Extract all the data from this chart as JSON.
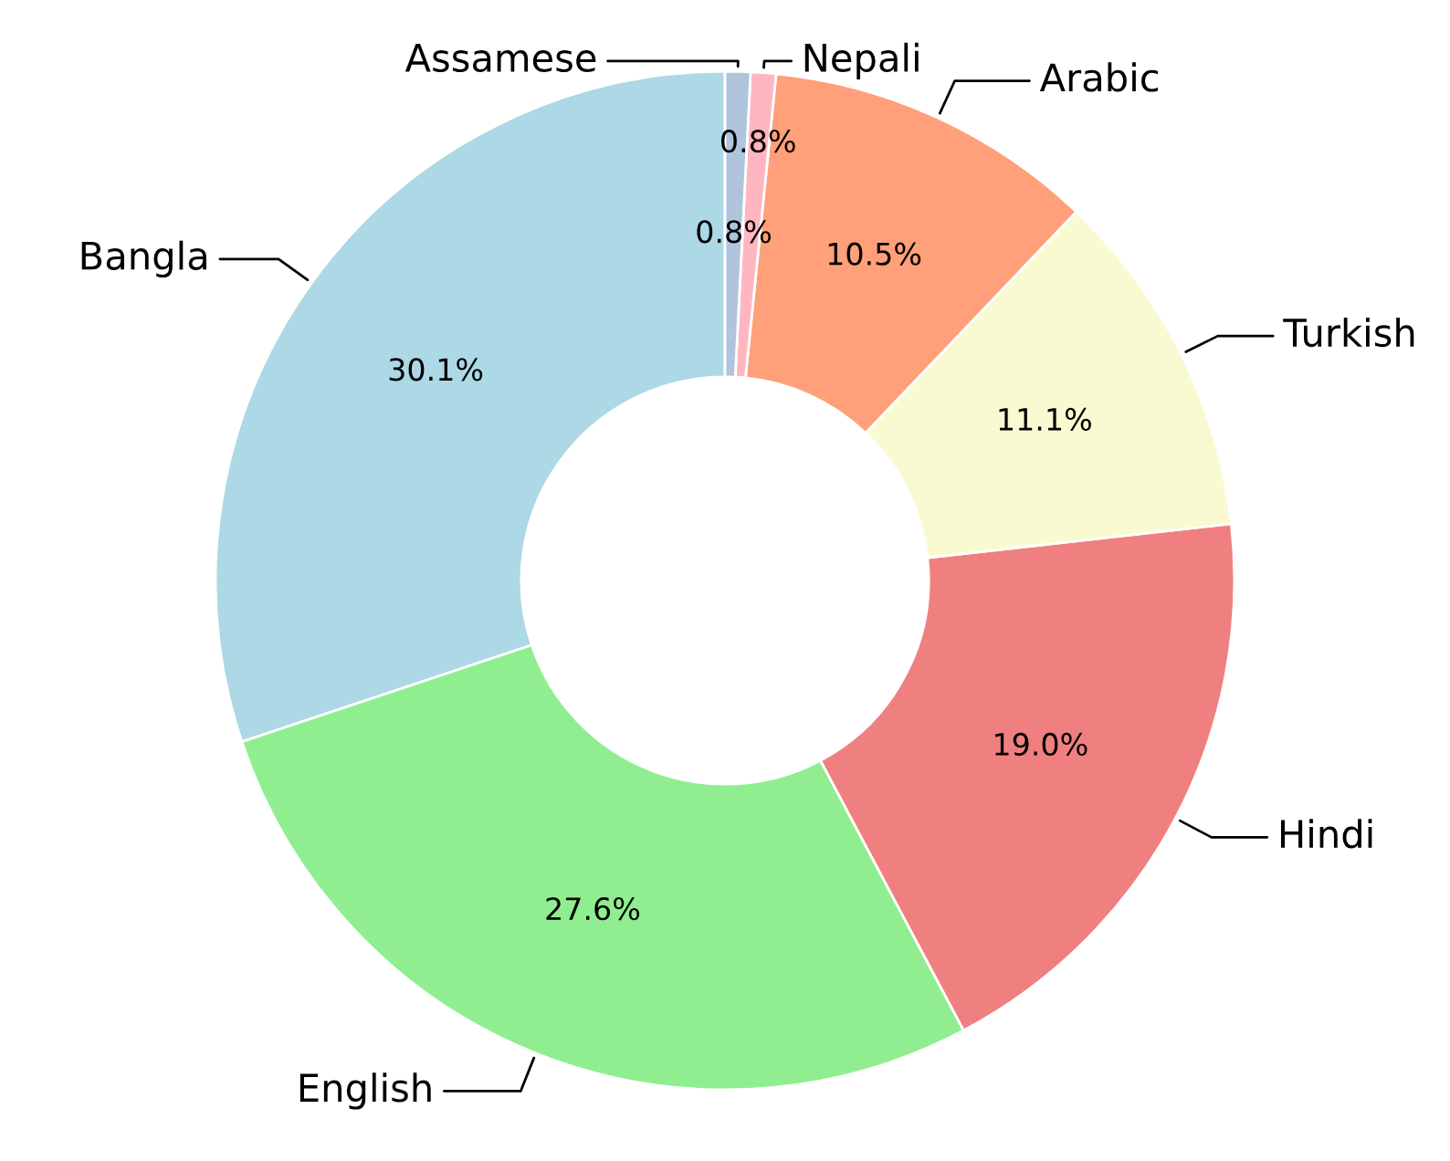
{
  "chart_data": {
    "type": "donut",
    "categories": [
      "Bangla",
      "English",
      "Hindi",
      "Turkish",
      "Arabic",
      "Nepali",
      "Assamese"
    ],
    "values": [
      30.1,
      27.6,
      19.0,
      11.1,
      10.5,
      0.8,
      0.8
    ],
    "colors": [
      "#add8e6",
      "#90ee90",
      "#f08080",
      "#fafad2",
      "#ffa07a",
      "#ffb6c1",
      "#b0c4de"
    ],
    "value_labels": [
      "30.1%",
      "27.6%",
      "19.0%",
      "11.1%",
      "10.5%",
      "0.8%",
      "0.8%"
    ]
  }
}
